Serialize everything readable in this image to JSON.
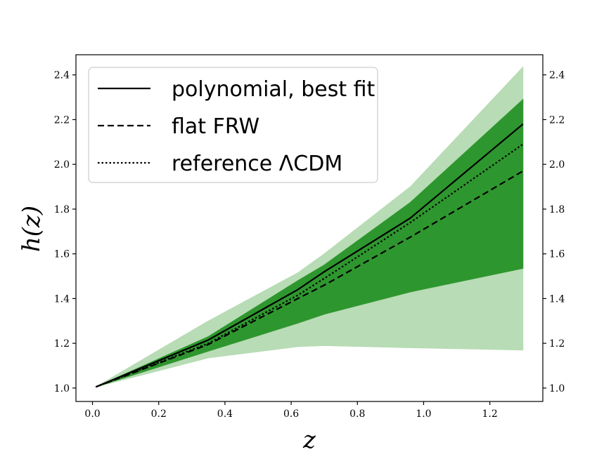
{
  "chart_data": {
    "type": "line",
    "xlabel": "z",
    "ylabel": "h(z)",
    "xlim": [
      -0.05,
      1.36
    ],
    "ylim": [
      0.94,
      2.49
    ],
    "x_ticks": [
      0.0,
      0.2,
      0.4,
      0.6,
      0.8,
      1.0,
      1.2
    ],
    "x_tick_labels": [
      "0.0",
      "0.2",
      "0.4",
      "0.6",
      "0.8",
      "1.0",
      "1.2"
    ],
    "y_ticks": [
      1.0,
      1.2,
      1.4,
      1.6,
      1.8,
      2.0,
      2.2,
      2.4
    ],
    "y_tick_labels": [
      "1.0",
      "1.2",
      "1.4",
      "1.6",
      "1.8",
      "2.0",
      "2.2",
      "2.4"
    ],
    "right_y_axis_mirrored": true,
    "grid": false,
    "legend_position": "top-left",
    "bands": [
      {
        "color": "#b8dcb5",
        "x": [
          0.01,
          0.35,
          0.62,
          0.7,
          0.96,
          1.3
        ],
        "lower": [
          1.005,
          1.135,
          1.185,
          1.19,
          1.18,
          1.17
        ],
        "upper": [
          1.005,
          1.3,
          1.515,
          1.6,
          1.9,
          2.435
        ]
      },
      {
        "color": "#2e962e",
        "x": [
          0.01,
          0.35,
          0.62,
          0.7,
          0.96,
          1.3
        ],
        "lower": [
          1.005,
          1.165,
          1.29,
          1.33,
          1.43,
          1.535
        ],
        "upper": [
          1.005,
          1.23,
          1.48,
          1.55,
          1.83,
          2.29
        ]
      }
    ],
    "series": [
      {
        "name": "polynomial, best fit",
        "style": "solid",
        "x": [
          0.01,
          0.35,
          0.62,
          0.7,
          0.96,
          1.3
        ],
        "y": [
          1.005,
          1.215,
          1.44,
          1.52,
          1.76,
          2.18
        ]
      },
      {
        "name": "flat FRW",
        "style": "dashed",
        "x": [
          0.01,
          0.35,
          0.62,
          0.7,
          0.96,
          1.3
        ],
        "y": [
          1.005,
          1.195,
          1.4,
          1.46,
          1.675,
          1.97
        ]
      },
      {
        "name": "reference ΛCDM",
        "style": "dotted",
        "x": [
          0.01,
          0.35,
          0.62,
          0.7,
          0.96,
          1.3
        ],
        "y": [
          1.005,
          1.2,
          1.415,
          1.49,
          1.74,
          2.09
        ]
      }
    ]
  }
}
